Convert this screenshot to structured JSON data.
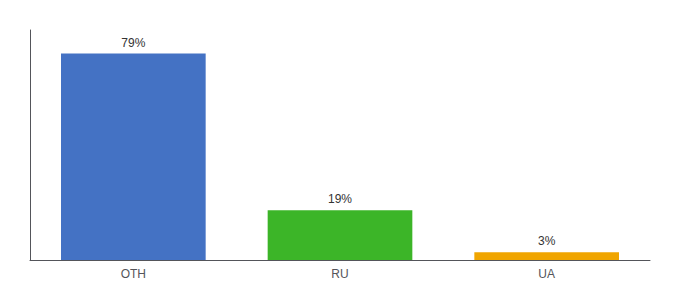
{
  "chart_data": {
    "type": "bar",
    "categories": [
      "OTH",
      "RU",
      "UA"
    ],
    "values": [
      79,
      19,
      3
    ],
    "value_labels": [
      "79%",
      "19%",
      "3%"
    ],
    "data_labels": true,
    "colors": [
      "#4472c4",
      "#3cb528",
      "#f0a500"
    ],
    "ylim": [
      0,
      88
    ],
    "tick_labels": "x",
    "grid": false
  }
}
